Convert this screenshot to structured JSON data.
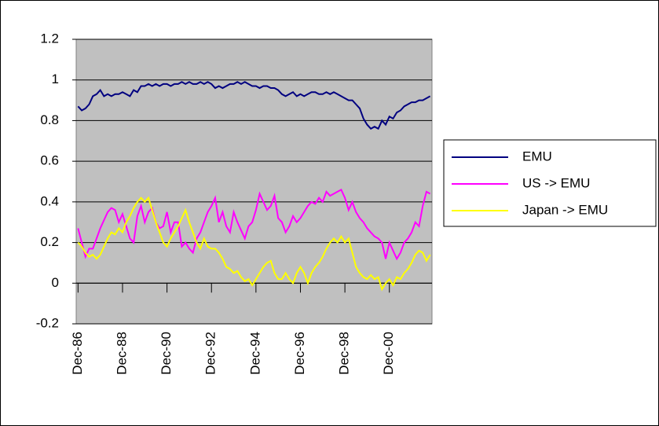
{
  "chart_data": {
    "type": "line",
    "categories": [
      "Dec-86",
      null,
      null,
      null,
      null,
      null,
      null,
      null,
      null,
      null,
      null,
      null,
      "Dec-88",
      null,
      null,
      null,
      null,
      null,
      null,
      null,
      null,
      null,
      null,
      null,
      "Dec-90",
      null,
      null,
      null,
      null,
      null,
      null,
      null,
      null,
      null,
      null,
      null,
      "Dec-92",
      null,
      null,
      null,
      null,
      null,
      null,
      null,
      null,
      null,
      null,
      null,
      "Dec-94",
      null,
      null,
      null,
      null,
      null,
      null,
      null,
      null,
      null,
      null,
      null,
      "Dec-96",
      null,
      null,
      null,
      null,
      null,
      null,
      null,
      null,
      null,
      null,
      null,
      "Dec-98",
      null,
      null,
      null,
      null,
      null,
      null,
      null,
      null,
      null,
      null,
      null,
      "Dec-00",
      null,
      null,
      null,
      null,
      null,
      null,
      null,
      null,
      null,
      null,
      null
    ],
    "series": [
      {
        "name": "EMU",
        "color": "#000080",
        "values": [
          0.87,
          0.85,
          0.86,
          0.88,
          0.92,
          0.93,
          0.95,
          0.92,
          0.93,
          0.92,
          0.93,
          0.93,
          0.94,
          0.93,
          0.92,
          0.95,
          0.94,
          0.97,
          0.97,
          0.98,
          0.97,
          0.98,
          0.97,
          0.98,
          0.98,
          0.97,
          0.98,
          0.98,
          0.99,
          0.98,
          0.99,
          0.98,
          0.98,
          0.99,
          0.98,
          0.99,
          0.98,
          0.96,
          0.97,
          0.96,
          0.97,
          0.98,
          0.98,
          0.99,
          0.98,
          0.99,
          0.98,
          0.97,
          0.97,
          0.96,
          0.97,
          0.97,
          0.96,
          0.96,
          0.95,
          0.93,
          0.92,
          0.93,
          0.94,
          0.92,
          0.93,
          0.92,
          0.93,
          0.94,
          0.94,
          0.93,
          0.93,
          0.94,
          0.93,
          0.94,
          0.93,
          0.92,
          0.91,
          0.9,
          0.9,
          0.88,
          0.86,
          0.81,
          0.78,
          0.76,
          0.77,
          0.76,
          0.8,
          0.78,
          0.82,
          0.81,
          0.84,
          0.85,
          0.87,
          0.88,
          0.89,
          0.89,
          0.9,
          0.9,
          0.91,
          0.92
        ]
      },
      {
        "name": "US -> EMU",
        "color": "#ff00ff",
        "values": [
          0.27,
          0.2,
          0.13,
          0.17,
          0.17,
          0.22,
          0.27,
          0.31,
          0.35,
          0.37,
          0.36,
          0.3,
          0.34,
          0.28,
          0.22,
          0.2,
          0.33,
          0.38,
          0.3,
          0.35,
          0.37,
          0.3,
          0.27,
          0.28,
          0.35,
          0.25,
          0.3,
          0.3,
          0.18,
          0.2,
          0.17,
          0.15,
          0.22,
          0.25,
          0.3,
          0.35,
          0.38,
          0.42,
          0.3,
          0.35,
          0.28,
          0.25,
          0.35,
          0.3,
          0.26,
          0.22,
          0.28,
          0.3,
          0.36,
          0.44,
          0.4,
          0.36,
          0.38,
          0.43,
          0.32,
          0.3,
          0.25,
          0.28,
          0.33,
          0.3,
          0.32,
          0.35,
          0.38,
          0.4,
          0.39,
          0.42,
          0.4,
          0.45,
          0.43,
          0.44,
          0.45,
          0.46,
          0.42,
          0.36,
          0.4,
          0.35,
          0.32,
          0.3,
          0.27,
          0.25,
          0.23,
          0.22,
          0.2,
          0.12,
          0.2,
          0.16,
          0.12,
          0.15,
          0.2,
          0.22,
          0.25,
          0.3,
          0.28,
          0.38,
          0.45,
          0.44
        ]
      },
      {
        "name": "Japan -> EMU",
        "color": "#ffff00",
        "values": [
          0.2,
          0.18,
          0.15,
          0.13,
          0.14,
          0.12,
          0.14,
          0.18,
          0.22,
          0.25,
          0.24,
          0.27,
          0.25,
          0.3,
          0.33,
          0.37,
          0.4,
          0.42,
          0.4,
          0.42,
          0.36,
          0.3,
          0.25,
          0.2,
          0.18,
          0.22,
          0.25,
          0.28,
          0.32,
          0.36,
          0.3,
          0.25,
          0.2,
          0.17,
          0.22,
          0.18,
          0.17,
          0.17,
          0.15,
          0.12,
          0.08,
          0.07,
          0.05,
          0.06,
          0.03,
          0.01,
          0.02,
          -0.01,
          0.02,
          0.05,
          0.08,
          0.1,
          0.11,
          0.05,
          0.02,
          0.02,
          0.05,
          0.02,
          0.0,
          0.05,
          0.08,
          0.05,
          0.0,
          0.05,
          0.08,
          0.1,
          0.13,
          0.17,
          0.2,
          0.22,
          0.2,
          0.23,
          0.2,
          0.22,
          0.15,
          0.08,
          0.05,
          0.03,
          0.02,
          0.04,
          0.02,
          0.03,
          -0.03,
          0.0,
          0.02,
          -0.01,
          0.03,
          0.02,
          0.05,
          0.07,
          0.1,
          0.14,
          0.16,
          0.15,
          0.11,
          0.14
        ]
      }
    ],
    "ylim": [
      -0.2,
      1.2
    ],
    "yticks": [
      -0.2,
      0,
      0.2,
      0.4,
      0.6,
      0.8,
      1,
      1.2
    ],
    "grid": true,
    "legend": "right",
    "plot_background": "#c0c0c0"
  }
}
